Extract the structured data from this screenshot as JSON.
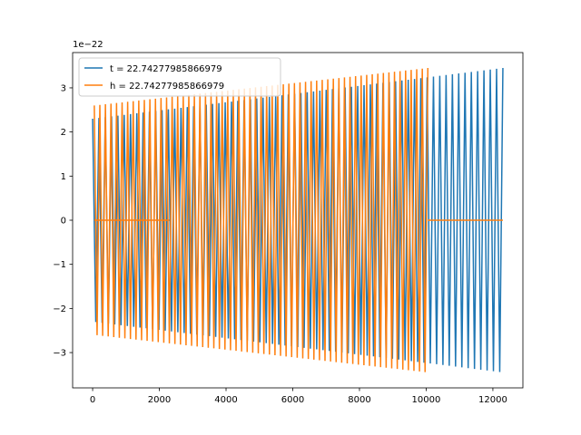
{
  "chart_data": {
    "type": "line",
    "title": "",
    "xlabel": "",
    "ylabel": "",
    "y_offset_text": "1e−22",
    "xlim": [
      -600,
      12900
    ],
    "ylim": [
      -3.8,
      3.8
    ],
    "x_ticks": [
      0,
      2000,
      4000,
      6000,
      8000,
      10000,
      12000
    ],
    "x_tick_labels": [
      "0",
      "2000",
      "4000",
      "6000",
      "8000",
      "10000",
      "12000"
    ],
    "y_ticks": [
      -3,
      -2,
      -1,
      0,
      1,
      2,
      3
    ],
    "y_tick_labels": [
      "−3",
      "−2",
      "−1",
      "0",
      "1",
      "2",
      "3"
    ],
    "grid": false,
    "legend_position": "top-left",
    "series": [
      {
        "name": "t = 22.74277985866979",
        "color": "#1f77b4",
        "x_start": 0,
        "x_end": 12300,
        "amp_start": 2.3,
        "amp_end": 3.45,
        "oscillations": 130,
        "segments": []
      },
      {
        "name": "h = 22.74277985866979",
        "color": "#ff7f0e",
        "x_start": 50,
        "x_end": 10050,
        "amp_start": 2.6,
        "amp_end": 3.45,
        "oscillations": 120,
        "segments": [
          {
            "x": [
              50,
              2300
            ],
            "y": [
              0,
              0
            ]
          },
          {
            "x": [
              10050,
              12300
            ],
            "y": [
              0,
              0
            ]
          }
        ]
      }
    ]
  }
}
